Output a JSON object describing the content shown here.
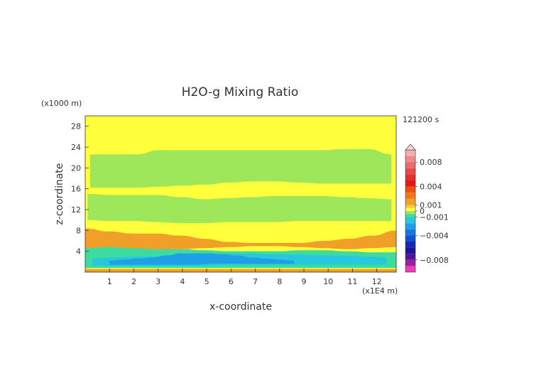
{
  "chart_data": {
    "type": "heatmap",
    "title": "H2O-g Mixing Ratio",
    "xlabel": "x-coordinate",
    "ylabel": "z-coordinate",
    "x_unit": "(x1E4 m)",
    "y_unit": "(x1000 m)",
    "time_label": "121200 s",
    "xlim": [
      0,
      12.8
    ],
    "ylim": [
      0,
      30
    ],
    "x_ticks": [
      1,
      2,
      3,
      4,
      5,
      6,
      7,
      8,
      9,
      10,
      11,
      12
    ],
    "y_ticks": [
      4,
      8,
      12,
      16,
      20,
      24,
      28
    ],
    "colorbar": {
      "min": -0.01,
      "max": 0.01,
      "labels": [
        {
          "value": 0.008,
          "text": "0.008"
        },
        {
          "value": 0.004,
          "text": "0.004"
        },
        {
          "value": 0.001,
          "text": "0.001"
        },
        {
          "value": 0.0,
          "text": "0"
        },
        {
          "value": -0.001,
          "text": "−0.001"
        },
        {
          "value": -0.004,
          "text": "−0.004"
        },
        {
          "value": -0.008,
          "text": "−0.008"
        }
      ],
      "levels": [
        {
          "from": 0.009,
          "to": 0.01,
          "color": "#f4b0b0"
        },
        {
          "from": 0.008,
          "to": 0.009,
          "color": "#f08a8a"
        },
        {
          "from": 0.007,
          "to": 0.008,
          "color": "#ec6a6a"
        },
        {
          "from": 0.006,
          "to": 0.007,
          "color": "#e84a4a"
        },
        {
          "from": 0.005,
          "to": 0.006,
          "color": "#e43030"
        },
        {
          "from": 0.004,
          "to": 0.005,
          "color": "#e41818"
        },
        {
          "from": 0.003,
          "to": 0.004,
          "color": "#ec5010"
        },
        {
          "from": 0.002,
          "to": 0.003,
          "color": "#f07818"
        },
        {
          "from": 0.001,
          "to": 0.002,
          "color": "#f0a028"
        },
        {
          "from": 0.0005,
          "to": 0.001,
          "color": "#f4c83c"
        },
        {
          "from": 0.0,
          "to": 0.0005,
          "color": "#ffff3c"
        },
        {
          "from": -0.0005,
          "to": 0.0,
          "color": "#9ee65a"
        },
        {
          "from": -0.001,
          "to": -0.0005,
          "color": "#3cdca0"
        },
        {
          "from": -0.002,
          "to": -0.001,
          "color": "#28c8dc"
        },
        {
          "from": -0.003,
          "to": -0.002,
          "color": "#1ea0e6"
        },
        {
          "from": -0.004,
          "to": -0.003,
          "color": "#1478e0"
        },
        {
          "from": -0.005,
          "to": -0.004,
          "color": "#1450d2"
        },
        {
          "from": -0.006,
          "to": -0.005,
          "color": "#1428b4"
        },
        {
          "from": -0.007,
          "to": -0.006,
          "color": "#1e1496"
        },
        {
          "from": -0.008,
          "to": -0.007,
          "color": "#501496"
        },
        {
          "from": -0.009,
          "to": -0.008,
          "color": "#a01ea0"
        },
        {
          "from": -0.01,
          "to": -0.009,
          "color": "#f03cb4"
        }
      ]
    },
    "field": {
      "background": "#ffff3c",
      "bands": [
        {
          "value": -0.0003,
          "x": [
            0.2,
            12.6
          ],
          "top": [
            22.6,
            22.6,
            22.6,
            23.4,
            23.4,
            23.4,
            23.4,
            23.4,
            23.4,
            23.4,
            23.4,
            23.6,
            23.6,
            22.6
          ],
          "bottom": [
            16.2,
            16.2,
            16.2,
            16.4,
            16.6,
            16.8,
            17.2,
            17.4,
            17.4,
            17.2,
            17.0,
            17.0,
            17.0,
            17.0
          ]
        },
        {
          "value": -0.0003,
          "x": [
            0.1,
            12.6
          ],
          "top": [
            15.0,
            14.8,
            14.8,
            14.8,
            14.4,
            14.0,
            14.2,
            14.4,
            14.6,
            14.6,
            14.6,
            14.4,
            14.2,
            14.0
          ],
          "bottom": [
            10.0,
            9.8,
            9.8,
            9.6,
            9.4,
            9.4,
            9.6,
            9.6,
            9.6,
            9.8,
            9.8,
            9.8,
            9.8,
            9.8
          ]
        },
        {
          "value": 0.0015,
          "x": [
            0.0,
            12.8
          ],
          "top": [
            8.4,
            7.8,
            7.4,
            7.4,
            7.0,
            6.4,
            5.8,
            5.6,
            5.6,
            5.6,
            6.0,
            6.4,
            7.0,
            8.0
          ],
          "bottom": [
            4.4,
            4.6,
            4.4,
            4.2,
            4.4,
            4.6,
            4.8,
            5.0,
            5.0,
            4.8,
            4.6,
            4.4,
            4.6,
            4.8
          ]
        },
        {
          "value": -0.0007,
          "x": [
            0.0,
            12.8
          ],
          "top": [
            4.6,
            4.8,
            4.6,
            4.4,
            4.4,
            4.2,
            4.0,
            4.0,
            4.0,
            4.2,
            4.2,
            4.0,
            3.8,
            3.8
          ],
          "bottom": [
            0.8,
            0.8,
            0.8,
            0.8,
            0.8,
            0.8,
            0.8,
            0.8,
            0.8,
            0.8,
            0.8,
            0.8,
            0.8,
            0.8
          ]
        },
        {
          "value": -0.0015,
          "x": [
            0.3,
            12.4
          ],
          "top": [
            2.6,
            2.8,
            3.0,
            3.0,
            3.2,
            3.6,
            3.6,
            3.6,
            3.4,
            3.4,
            3.2,
            3.2,
            3.0,
            2.8
          ],
          "bottom": [
            1.2,
            1.2,
            1.2,
            1.2,
            1.2,
            1.2,
            1.4,
            1.4,
            1.4,
            1.4,
            1.4,
            1.4,
            1.4,
            1.4
          ]
        },
        {
          "value": -0.0025,
          "x": [
            1.0,
            8.6
          ],
          "top": [
            2.2,
            2.4,
            2.6,
            2.8,
            3.2,
            3.6,
            3.6,
            3.6,
            3.4,
            3.2,
            2.8,
            2.6,
            2.4,
            2.2
          ],
          "bottom": [
            1.4,
            1.4,
            1.4,
            1.4,
            1.4,
            1.4,
            1.4,
            1.6,
            1.6,
            1.6,
            1.6,
            1.6,
            1.6,
            1.6
          ]
        },
        {
          "value": 0.0015,
          "x": [
            0.0,
            12.8
          ],
          "top": [
            0.6,
            0.6,
            0.6,
            0.6,
            0.6,
            0.6,
            0.6,
            0.6,
            0.6,
            0.6,
            0.6,
            0.6,
            0.6,
            0.6
          ],
          "bottom": [
            0.0,
            0.0,
            0.0,
            0.0,
            0.0,
            0.0,
            0.0,
            0.0,
            0.0,
            0.0,
            0.0,
            0.0,
            0.0,
            0.0
          ]
        }
      ]
    }
  }
}
